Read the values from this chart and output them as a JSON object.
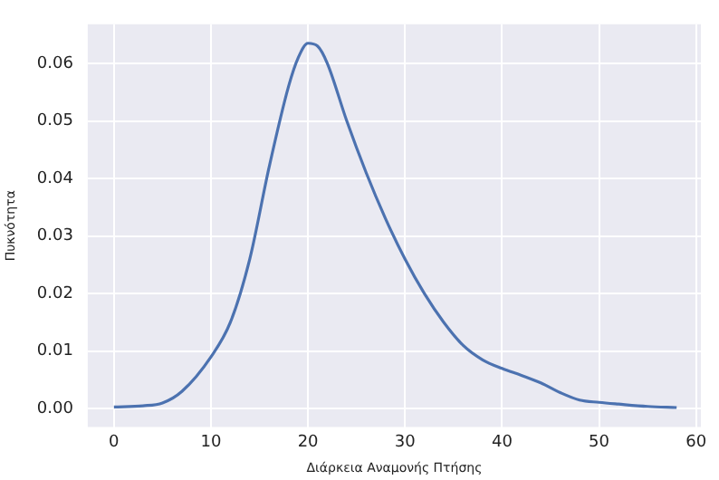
{
  "chart_data": {
    "type": "line",
    "xlabel": "Διάρκεια Αναμονής Πτήσης",
    "ylabel": "Πυκνότητα",
    "x": [
      0,
      3,
      5,
      7,
      10,
      12,
      14,
      16,
      18,
      19,
      20,
      21,
      22,
      24,
      26,
      28,
      30,
      32,
      34,
      36,
      38,
      40,
      42,
      44,
      46,
      48,
      50,
      52,
      55,
      58
    ],
    "series": [
      {
        "color": "#4c72b0",
        "values": [
          0.0003,
          0.0005,
          0.001,
          0.003,
          0.009,
          0.015,
          0.026,
          0.042,
          0.056,
          0.061,
          0.0635,
          0.063,
          0.06,
          0.05,
          0.041,
          0.033,
          0.026,
          0.02,
          0.015,
          0.011,
          0.0085,
          0.007,
          0.0058,
          0.0045,
          0.0028,
          0.0015,
          0.0011,
          0.0008,
          0.0004,
          0.0002
        ]
      }
    ],
    "xlim": [
      -2.7,
      60.5
    ],
    "xticks": [
      0,
      10,
      20,
      30,
      40,
      50,
      60
    ],
    "ylim": [
      -0.0032,
      0.0668
    ],
    "yticks": [
      {
        "value": 0,
        "label": "0.00"
      },
      {
        "value": 0.01,
        "label": "0.01"
      },
      {
        "value": 0.02,
        "label": "0.02"
      },
      {
        "value": 0.03,
        "label": "0.03"
      },
      {
        "value": 0.04,
        "label": "0.04"
      },
      {
        "value": 0.05,
        "label": "0.05"
      },
      {
        "value": 0.06,
        "label": "0.06"
      }
    ],
    "grid": true,
    "legend": false,
    "marker": "none",
    "line_style": "solid"
  }
}
